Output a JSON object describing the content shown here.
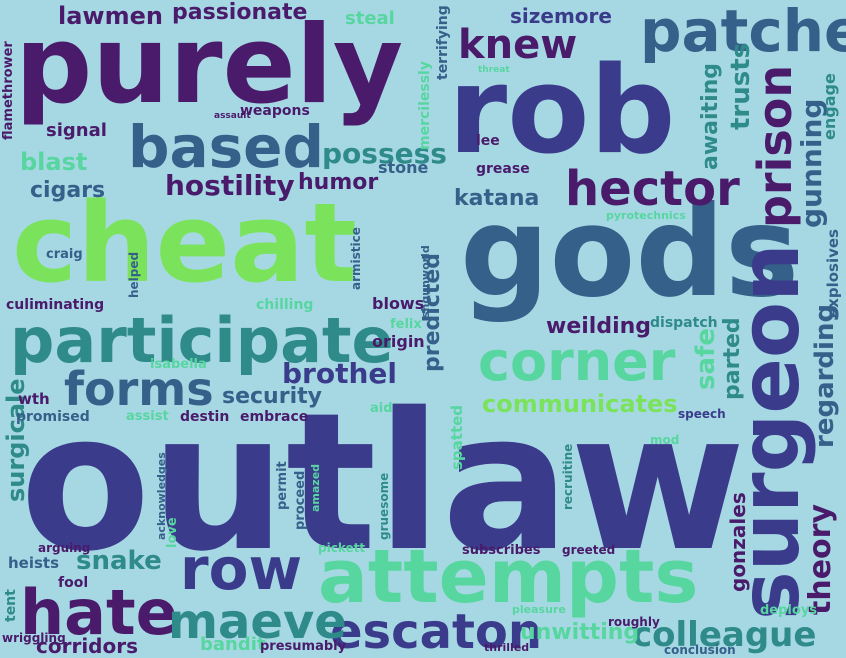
{
  "palette": {
    "background": "#a6d8e3",
    "dark_purple": "#4a1a6b",
    "indigo": "#3b3b8c",
    "slate_blue": "#35608a",
    "teal": "#2f8a8a",
    "sea_green": "#33b08a",
    "mint": "#57d6a0",
    "lime": "#7be35b"
  },
  "words": [
    {
      "text": "outlaw",
      "color": "#3b3b8c"
    },
    {
      "text": "cheat",
      "color": "#7be35b"
    },
    {
      "text": "gods",
      "color": "#35608a"
    },
    {
      "text": "purely",
      "color": "#4a1a6b"
    },
    {
      "text": "rob",
      "color": "#3b3b8c"
    },
    {
      "text": "participate",
      "color": "#2f8a8a"
    },
    {
      "text": "attempts",
      "color": "#57d6a0"
    },
    {
      "text": "surgeon",
      "color": "#3b3b8c"
    },
    {
      "text": "hate",
      "color": "#4a1a6b"
    },
    {
      "text": "patches",
      "color": "#35608a"
    },
    {
      "text": "based",
      "color": "#35608a"
    },
    {
      "text": "hector",
      "color": "#4a1a6b"
    },
    {
      "text": "prison",
      "color": "#4a1a6b"
    },
    {
      "text": "corner",
      "color": "#57d6a0"
    },
    {
      "text": "forms",
      "color": "#35608a"
    },
    {
      "text": "row",
      "color": "#3b3b8c"
    },
    {
      "text": "escaton",
      "color": "#3b3b8c"
    },
    {
      "text": "maeve",
      "color": "#2f8a8a"
    },
    {
      "text": "knew",
      "color": "#4a1a6b"
    },
    {
      "text": "colleague",
      "color": "#2f8a8a"
    },
    {
      "text": "possess",
      "color": "#2f8a8a"
    },
    {
      "text": "hostility",
      "color": "#4a1a6b"
    },
    {
      "text": "communicates",
      "color": "#7be35b"
    },
    {
      "text": "lawmen",
      "color": "#4a1a6b"
    },
    {
      "text": "passionate",
      "color": "#4a1a6b"
    },
    {
      "text": "sizemore",
      "color": "#3b3b8c"
    },
    {
      "text": "theory",
      "color": "#4a1a6b"
    },
    {
      "text": "regarding",
      "color": "#35608a"
    },
    {
      "text": "gunning",
      "color": "#35608a"
    },
    {
      "text": "trusts",
      "color": "#2f8a8a"
    },
    {
      "text": "awaiting",
      "color": "#2f8a8a"
    },
    {
      "text": "engage",
      "color": "#2f8a8a"
    },
    {
      "text": "brothel",
      "color": "#3b3b8c"
    },
    {
      "text": "security",
      "color": "#35608a"
    },
    {
      "text": "snake",
      "color": "#2f8a8a"
    },
    {
      "text": "blast",
      "color": "#57d6a0"
    },
    {
      "text": "cigars",
      "color": "#35608a"
    },
    {
      "text": "humor",
      "color": "#4a1a6b"
    },
    {
      "text": "katana",
      "color": "#35608a"
    },
    {
      "text": "weilding",
      "color": "#4a1a6b"
    },
    {
      "text": "unwitting",
      "color": "#57d6a0"
    },
    {
      "text": "corridors",
      "color": "#4a1a6b"
    },
    {
      "text": "safe",
      "color": "#57d6a0"
    },
    {
      "text": "parted",
      "color": "#2f8a8a"
    },
    {
      "text": "predicted",
      "color": "#35608a"
    },
    {
      "text": "gonzales",
      "color": "#4a1a6b"
    },
    {
      "text": "surgicale",
      "color": "#2f8a8a"
    },
    {
      "text": "bandit",
      "color": "#57d6a0"
    },
    {
      "text": "steal",
      "color": "#57d6a0"
    },
    {
      "text": "signal",
      "color": "#4a1a6b"
    },
    {
      "text": "weapons",
      "color": "#4a1a6b"
    },
    {
      "text": "stone",
      "color": "#35608a"
    },
    {
      "text": "grease",
      "color": "#4a1a6b"
    },
    {
      "text": "lee",
      "color": "#4a1a6b"
    },
    {
      "text": "origin",
      "color": "#4a1a6b"
    },
    {
      "text": "blows",
      "color": "#4a1a6b"
    },
    {
      "text": "dispatch",
      "color": "#2f8a8a"
    },
    {
      "text": "explosives",
      "color": "#35608a"
    },
    {
      "text": "terrifying",
      "color": "#35608a"
    },
    {
      "text": "mercilessly",
      "color": "#57d6a0"
    },
    {
      "text": "flamethrower",
      "color": "#4a1a6b"
    },
    {
      "text": "craig",
      "color": "#35608a"
    },
    {
      "text": "helped",
      "color": "#35608a"
    },
    {
      "text": "armistice",
      "color": "#35608a"
    },
    {
      "text": "culiminating",
      "color": "#4a1a6b"
    },
    {
      "text": "chilling",
      "color": "#57d6a0"
    },
    {
      "text": "felix",
      "color": "#57d6a0"
    },
    {
      "text": "shgunworld",
      "color": "#35608a"
    },
    {
      "text": "isabella",
      "color": "#57d6a0"
    },
    {
      "text": "wth",
      "color": "#4a1a6b"
    },
    {
      "text": "promised",
      "color": "#35608a"
    },
    {
      "text": "assist",
      "color": "#57d6a0"
    },
    {
      "text": "destin",
      "color": "#4a1a6b"
    },
    {
      "text": "embrace",
      "color": "#4a1a6b"
    },
    {
      "text": "aid",
      "color": "#57d6a0"
    },
    {
      "text": "spatted",
      "color": "#57d6a0"
    },
    {
      "text": "recruitine",
      "color": "#2f8a8a"
    },
    {
      "text": "mod",
      "color": "#57d6a0"
    },
    {
      "text": "speech",
      "color": "#3b3b8c"
    },
    {
      "text": "acknowledges",
      "color": "#35608a"
    },
    {
      "text": "permit",
      "color": "#35608a"
    },
    {
      "text": "proceed",
      "color": "#35608a"
    },
    {
      "text": "amazed",
      "color": "#57d6a0"
    },
    {
      "text": "gruesome",
      "color": "#2f8a8a"
    },
    {
      "text": "arguing",
      "color": "#4a1a6b"
    },
    {
      "text": "love",
      "color": "#57d6a0"
    },
    {
      "text": "pickett",
      "color": "#57d6a0"
    },
    {
      "text": "subscribes",
      "color": "#4a1a6b"
    },
    {
      "text": "greeted",
      "color": "#4a1a6b"
    },
    {
      "text": "heists",
      "color": "#35608a"
    },
    {
      "text": "fool",
      "color": "#4a1a6b"
    },
    {
      "text": "tent",
      "color": "#2f8a8a"
    },
    {
      "text": "wriggling",
      "color": "#4a1a6b"
    },
    {
      "text": "presumably",
      "color": "#4a1a6b"
    },
    {
      "text": "pleasure",
      "color": "#57d6a0"
    },
    {
      "text": "thrilled",
      "color": "#4a1a6b"
    },
    {
      "text": "roughly",
      "color": "#4a1a6b"
    },
    {
      "text": "deploys",
      "color": "#57d6a0"
    },
    {
      "text": "conclusion",
      "color": "#35608a"
    },
    {
      "text": "pyrotechnics",
      "color": "#57d6a0"
    },
    {
      "text": "assault",
      "color": "#4a1a6b"
    },
    {
      "text": "threat",
      "color": "#57d6a0"
    }
  ]
}
